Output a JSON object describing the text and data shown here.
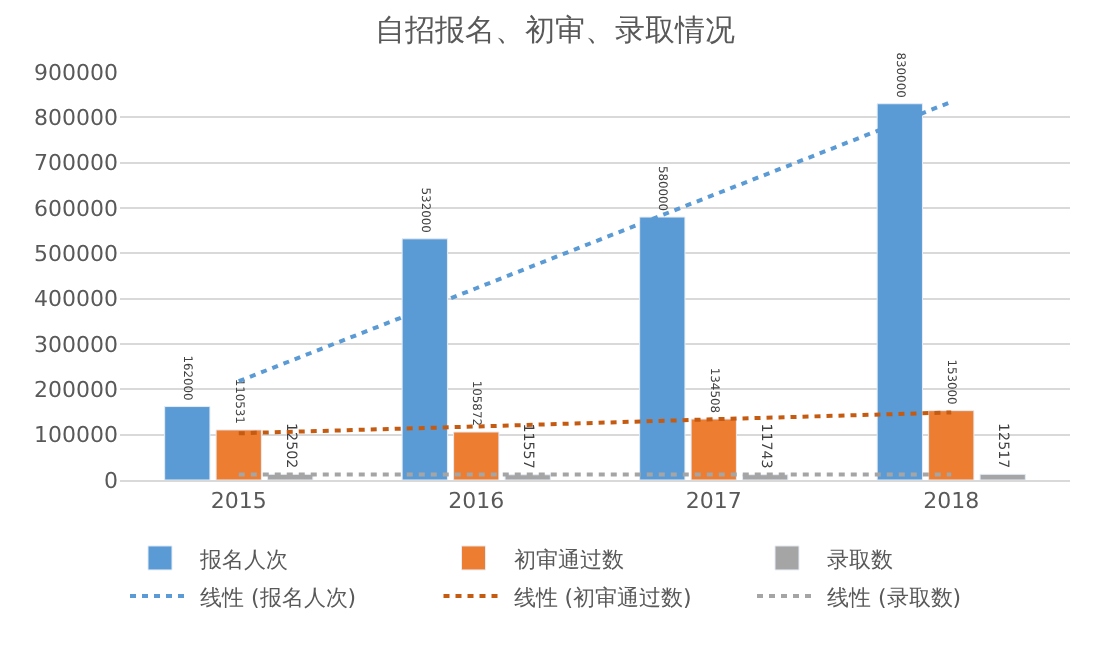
{
  "chart_data": {
    "type": "bar",
    "title": "自招报名、初审、录取情况",
    "categories": [
      "2015",
      "2016",
      "2017",
      "2018"
    ],
    "series": [
      {
        "name": "报名人次",
        "color": "#5b9bd5",
        "values": [
          162000,
          532000,
          580000,
          830000
        ],
        "value_labels": [
          "162000",
          "532000",
          "580000",
          "830000"
        ]
      },
      {
        "name": "初审通过数",
        "color": "#ed7d31",
        "values": [
          110531,
          105872,
          134508,
          153000
        ],
        "value_labels": [
          "110531",
          "105872",
          "134508",
          "153000"
        ]
      },
      {
        "name": "录取数",
        "color": "#a5a5a5",
        "values": [
          12502,
          11557,
          11743,
          12517
        ],
        "value_labels": [
          "12502",
          "11557",
          "11743",
          "12517"
        ]
      },
      {
        "name": "线性 (报名人次)",
        "type": "line",
        "line_style": "dotted",
        "color": "#5b9bd5",
        "values": [
          218000,
          423000,
          629000,
          834000
        ]
      },
      {
        "name": "线性 (初审通过数)",
        "type": "line",
        "line_style": "dotted",
        "color": "#c55a11",
        "values": [
          103000,
          118000,
          134000,
          149000
        ]
      },
      {
        "name": "线性 (录取数)",
        "type": "line",
        "line_style": "dotted",
        "color": "#a5a5a5",
        "values": [
          12000,
          12000,
          12000,
          12000
        ]
      }
    ],
    "ylim": [
      0,
      900000
    ],
    "yticks": [
      0,
      100000,
      200000,
      300000,
      400000,
      500000,
      600000,
      700000,
      800000,
      900000
    ],
    "grid": "y",
    "legend": "bottom"
  }
}
